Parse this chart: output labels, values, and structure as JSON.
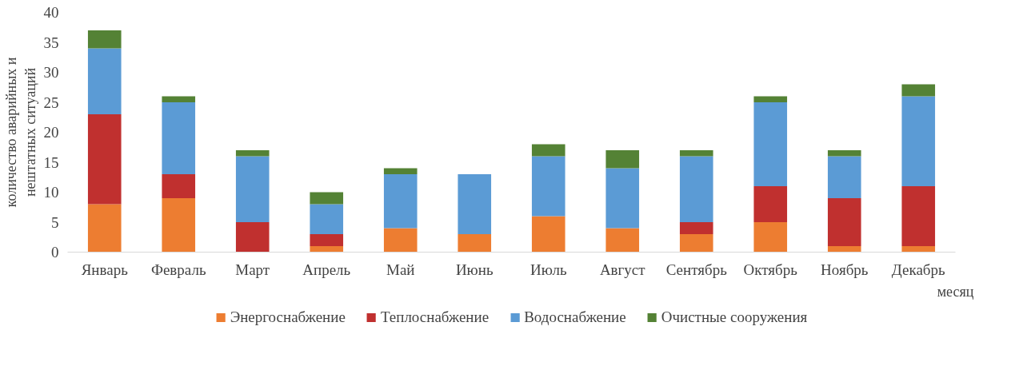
{
  "chart_data": {
    "type": "bar",
    "stacked": true,
    "xlabel": "месяц",
    "ylabel": "количество аварийных и\nнештатных ситуаций",
    "categories": [
      "Январь",
      "Февраль",
      "Март",
      "Апрель",
      "Май",
      "Июнь",
      "Июль",
      "Август",
      "Сентябрь",
      "Октябрь",
      "Ноябрь",
      "Декабрь"
    ],
    "series": [
      {
        "name": "Энергоснабжение",
        "color": "#ed7d31",
        "values": [
          8,
          9,
          0,
          1,
          4,
          3,
          6,
          4,
          3,
          5,
          1,
          1
        ]
      },
      {
        "name": "Теплоснабжение",
        "color": "#c0302f",
        "values": [
          15,
          4,
          5,
          2,
          0,
          0,
          0,
          0,
          2,
          6,
          8,
          10
        ]
      },
      {
        "name": "Водоснабжение",
        "color": "#5b9bd5",
        "values": [
          11,
          12,
          11,
          5,
          9,
          10,
          10,
          10,
          11,
          14,
          7,
          15
        ]
      },
      {
        "name": "Очистные сооружения",
        "color": "#548235",
        "values": [
          3,
          1,
          1,
          2,
          1,
          0,
          2,
          3,
          1,
          1,
          1,
          2
        ]
      }
    ],
    "ylim": [
      0,
      40
    ],
    "yticks": [
      0,
      5,
      10,
      15,
      20,
      25,
      30,
      35,
      40
    ],
    "grid": false,
    "legend": "bottom"
  }
}
